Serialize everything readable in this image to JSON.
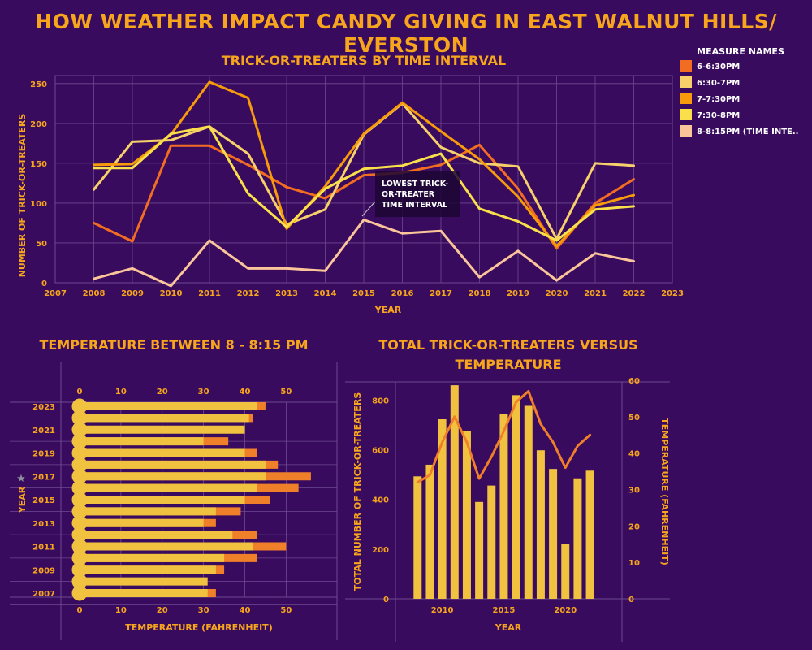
{
  "dashboard_title": "How Weather Impact Candy Giving in East Walnut Hills/ Everston",
  "colors": {
    "background": "#380b5e",
    "title": "#f7a51c",
    "grid": "#6e4a91",
    "series": [
      "#f26d21",
      "#f7d06b",
      "#f79b0a",
      "#f9e04b",
      "#fbc59a"
    ],
    "bar_base": "#f0c23f",
    "bar_extra": "#f07f2a",
    "total_bar": "#f0c23f",
    "temp_line": "#f07f2a"
  },
  "chart_data": [
    {
      "type": "line",
      "title": "Trick-or-Treaters by Time Interval",
      "xlabel": "Year",
      "ylabel": "Number of Trick-or-Treaters",
      "x_ticks": [
        "2007",
        "2008",
        "2009",
        "2010",
        "2011",
        "2012",
        "2013",
        "2014",
        "2015",
        "2016",
        "2017",
        "2018",
        "2019",
        "2020",
        "2021",
        "2022",
        "2023"
      ],
      "y_ticks": [
        0,
        50,
        100,
        150,
        200,
        250
      ],
      "ylim": [
        0,
        260
      ],
      "x": [
        2008,
        2009,
        2010,
        2011,
        2012,
        2013,
        2014,
        2015,
        2016,
        2017,
        2018,
        2019,
        2020,
        2021,
        2022
      ],
      "legend_title": "Measure Names",
      "legend_position": "top-right",
      "series": [
        {
          "name": "6-6:30pm",
          "values": [
            75,
            52,
            172,
            172,
            148,
            120,
            106,
            135,
            138,
            148,
            173,
            118,
            43,
            100,
            130
          ]
        },
        {
          "name": "6:30-7pm",
          "values": [
            117,
            177,
            179,
            196,
            162,
            73,
            92,
            186,
            225,
            170,
            150,
            146,
            55,
            150,
            147
          ]
        },
        {
          "name": "7-7:30pm",
          "values": [
            148,
            149,
            186,
            252,
            232,
            68,
            121,
            187,
            226,
            190,
            155,
            108,
            46,
            97,
            110
          ]
        },
        {
          "name": "7:30-8pm",
          "values": [
            144,
            144,
            187,
            196,
            112,
            70,
            118,
            143,
            147,
            162,
            93,
            77,
            53,
            92,
            96
          ]
        },
        {
          "name": "8-8:15pm (Time Inte..",
          "values": [
            5,
            18,
            -4,
            53,
            18,
            18,
            15,
            79,
            62,
            65,
            7,
            40,
            3,
            37,
            27
          ]
        }
      ],
      "annotation": [
        "Lowest Trick-",
        "or-Treater",
        "Time Interval"
      ]
    },
    {
      "type": "bar",
      "title": "Temperature Between 8 - 8:15 PM",
      "xlabel": "Temperature (Fahrenheit)",
      "ylabel": "Year",
      "x_ticks": [
        0,
        10,
        20,
        30,
        40,
        50
      ],
      "xlim": [
        0,
        57
      ],
      "categories": [
        2023,
        2022,
        2021,
        2020,
        2019,
        2018,
        2017,
        2016,
        2015,
        2014,
        2013,
        2012,
        2011,
        2010,
        2009,
        2008,
        2007
      ],
      "y_tick_labels": [
        "2023",
        "2021",
        "2019",
        "2017",
        "2015",
        "2013",
        "2011",
        "2009",
        "2007"
      ],
      "series": [
        {
          "values": [
            43,
            41,
            40,
            30,
            40,
            45,
            45,
            43,
            40,
            33,
            30,
            37,
            42,
            35,
            33,
            31,
            31
          ]
        },
        {
          "values": [
            45,
            42,
            null,
            36,
            43,
            48,
            56,
            53,
            46,
            39,
            33,
            43,
            50,
            43,
            35,
            null,
            33
          ]
        }
      ]
    },
    {
      "type": "bar",
      "title": [
        "Total Trick-or-Treaters versus",
        "Temperature"
      ],
      "xlabel": "Year",
      "ylabel": "Total Number of Trick-or-Treaters",
      "y2label": "Temperature (Fahrenheit)",
      "x_ticks": [
        2010,
        2015,
        2020
      ],
      "xlim": [
        2006.2,
        2024.6
      ],
      "y_ticks": [
        0,
        200,
        400,
        600,
        800
      ],
      "ylim": [
        0,
        880
      ],
      "y2_ticks": [
        0,
        10,
        20,
        30,
        40,
        50,
        60
      ],
      "y2lim": [
        0,
        60
      ],
      "x": [
        2008,
        2009,
        2010,
        2011,
        2012,
        2013,
        2014,
        2015,
        2016,
        2017,
        2018,
        2019,
        2020,
        2021,
        2022
      ],
      "bars": [
        493,
        540,
        723,
        860,
        675,
        390,
        456,
        745,
        820,
        777,
        598,
        523,
        220,
        485,
        516
      ],
      "line": [
        32,
        34,
        43,
        50,
        43,
        33,
        39,
        46,
        54,
        57,
        48,
        43,
        36,
        42,
        45
      ]
    }
  ]
}
